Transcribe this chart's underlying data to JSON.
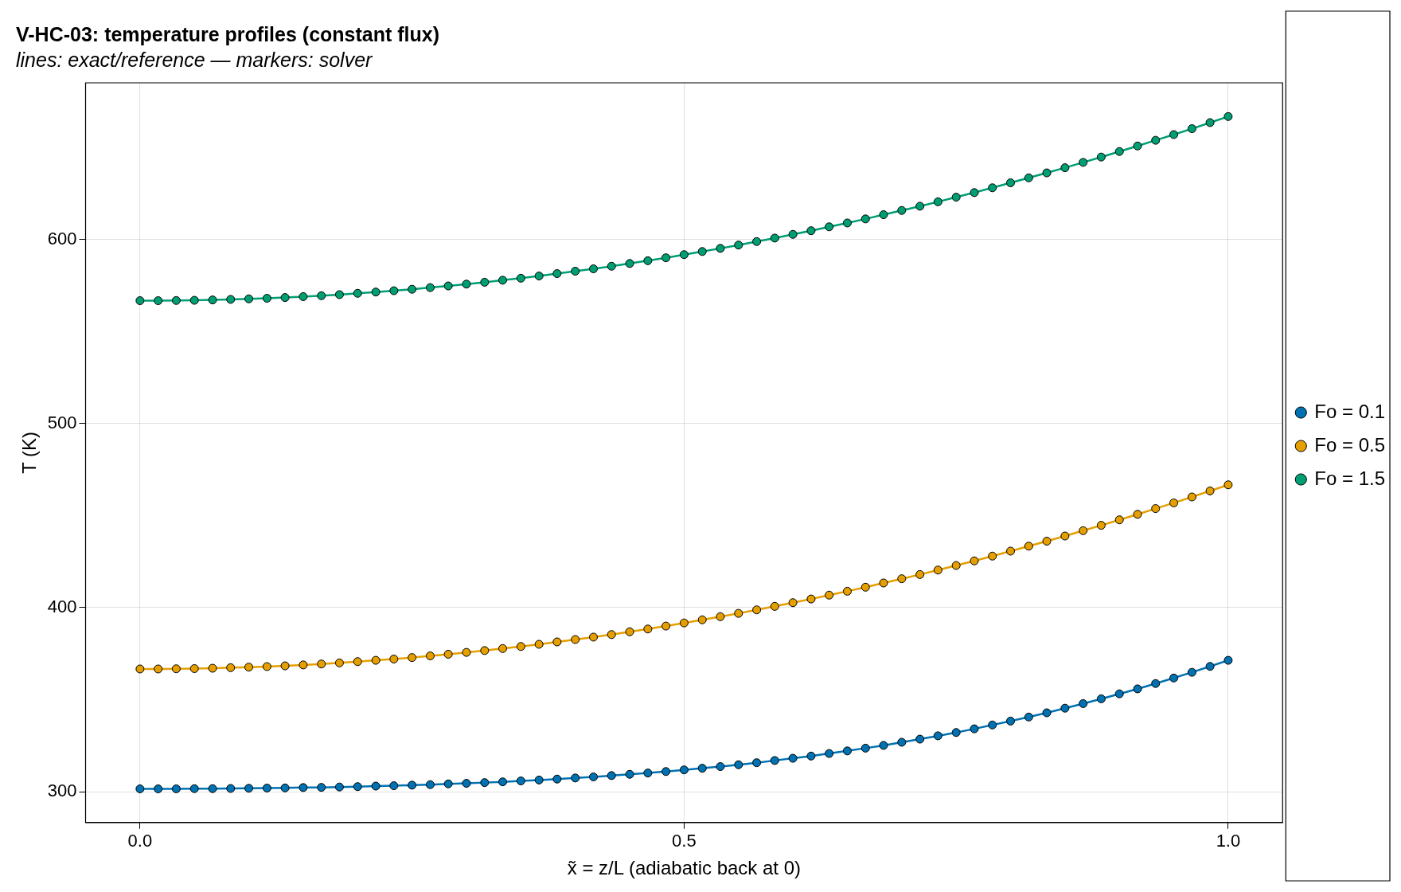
{
  "chart_data": {
    "type": "line",
    "title": "V-HC-03: temperature profiles (constant flux)",
    "subtitle": "lines: exact/reference — markers: solver",
    "xlabel": "x̃ = z/L (adiabatic back at 0)",
    "ylabel": "T (K)",
    "x": [
      0,
      0.0167,
      0.0333,
      0.05,
      0.0667,
      0.0833,
      0.1,
      0.1167,
      0.1333,
      0.15,
      0.1667,
      0.1833,
      0.2,
      0.2167,
      0.2333,
      0.25,
      0.2667,
      0.2833,
      0.3,
      0.3167,
      0.3333,
      0.35,
      0.3667,
      0.3833,
      0.4,
      0.4167,
      0.4333,
      0.45,
      0.4667,
      0.4833,
      0.5,
      0.5167,
      0.5333,
      0.55,
      0.5667,
      0.5833,
      0.6,
      0.6167,
      0.6333,
      0.65,
      0.6667,
      0.6833,
      0.7,
      0.7167,
      0.7333,
      0.75,
      0.7667,
      0.7833,
      0.8,
      0.8167,
      0.8333,
      0.85,
      0.8667,
      0.8833,
      0.9,
      0.9167,
      0.9333,
      0.95,
      0.9667,
      0.9833,
      1
    ],
    "series": [
      {
        "name": "Fo = 0.1",
        "color": "#0072b2",
        "values": [
          301.6,
          301.6,
          301.6,
          301.7,
          301.7,
          301.8,
          301.9,
          302.0,
          302.1,
          302.3,
          302.4,
          302.6,
          302.8,
          303.1,
          303.3,
          303.6,
          303.9,
          304.3,
          304.6,
          305.0,
          305.4,
          305.9,
          306.4,
          306.9,
          307.5,
          308.1,
          308.8,
          309.5,
          310.2,
          311.0,
          311.9,
          312.8,
          313.7,
          314.7,
          315.8,
          317.0,
          318.2,
          319.4,
          320.8,
          322.2,
          323.7,
          325.2,
          326.9,
          328.6,
          330.4,
          332.2,
          334.2,
          336.3,
          338.4,
          340.6,
          342.9,
          345.4,
          347.9,
          350.5,
          353.2,
          355.9,
          358.8,
          361.8,
          364.9,
          368.1,
          371.4
        ]
      },
      {
        "name": "Fo = 0.5",
        "color": "#e69f00",
        "values": [
          366.7,
          366.7,
          366.8,
          366.9,
          367.1,
          367.4,
          367.7,
          368.0,
          368.4,
          368.9,
          369.4,
          370.0,
          370.7,
          371.4,
          372.1,
          372.9,
          373.8,
          374.7,
          375.7,
          376.7,
          377.8,
          378.9,
          380.1,
          381.4,
          382.7,
          384.0,
          385.4,
          386.9,
          388.4,
          390.0,
          391.7,
          393.4,
          395.1,
          396.9,
          398.8,
          400.7,
          402.7,
          404.7,
          406.8,
          408.9,
          411.1,
          413.4,
          415.7,
          418.0,
          420.4,
          422.9,
          425.4,
          428.0,
          430.7,
          433.4,
          436.1,
          438.9,
          441.8,
          444.7,
          447.7,
          450.7,
          453.8,
          456.9,
          460.1,
          463.4,
          466.7
        ]
      },
      {
        "name": "Fo = 1.5",
        "color": "#009e73",
        "values": [
          566.7,
          566.7,
          566.8,
          566.9,
          567.1,
          567.4,
          567.7,
          568.0,
          568.4,
          568.9,
          569.4,
          570.0,
          570.7,
          571.4,
          572.1,
          572.9,
          573.8,
          574.7,
          575.7,
          576.7,
          577.8,
          578.9,
          580.1,
          581.4,
          582.7,
          584.0,
          585.4,
          586.9,
          588.4,
          590.0,
          591.7,
          593.4,
          595.1,
          596.9,
          598.8,
          600.7,
          602.7,
          604.7,
          606.8,
          608.9,
          611.1,
          613.4,
          615.7,
          618.0,
          620.4,
          622.9,
          625.4,
          628.0,
          630.7,
          633.4,
          636.1,
          638.9,
          641.8,
          644.7,
          647.7,
          650.7,
          653.8,
          656.9,
          660.1,
          663.4,
          666.7
        ]
      }
    ],
    "xlim": [
      -0.05,
      1.05
    ],
    "xticks": [
      {
        "value": 0,
        "label": "0.0"
      },
      0.5,
      {
        "value": 1,
        "label": "1.0"
      }
    ],
    "ylim": [
      283.3,
      685
    ],
    "yticks": [
      300,
      400,
      500,
      600
    ],
    "grid": true,
    "legend": "right",
    "marker": "circle",
    "line_style": "solid"
  }
}
